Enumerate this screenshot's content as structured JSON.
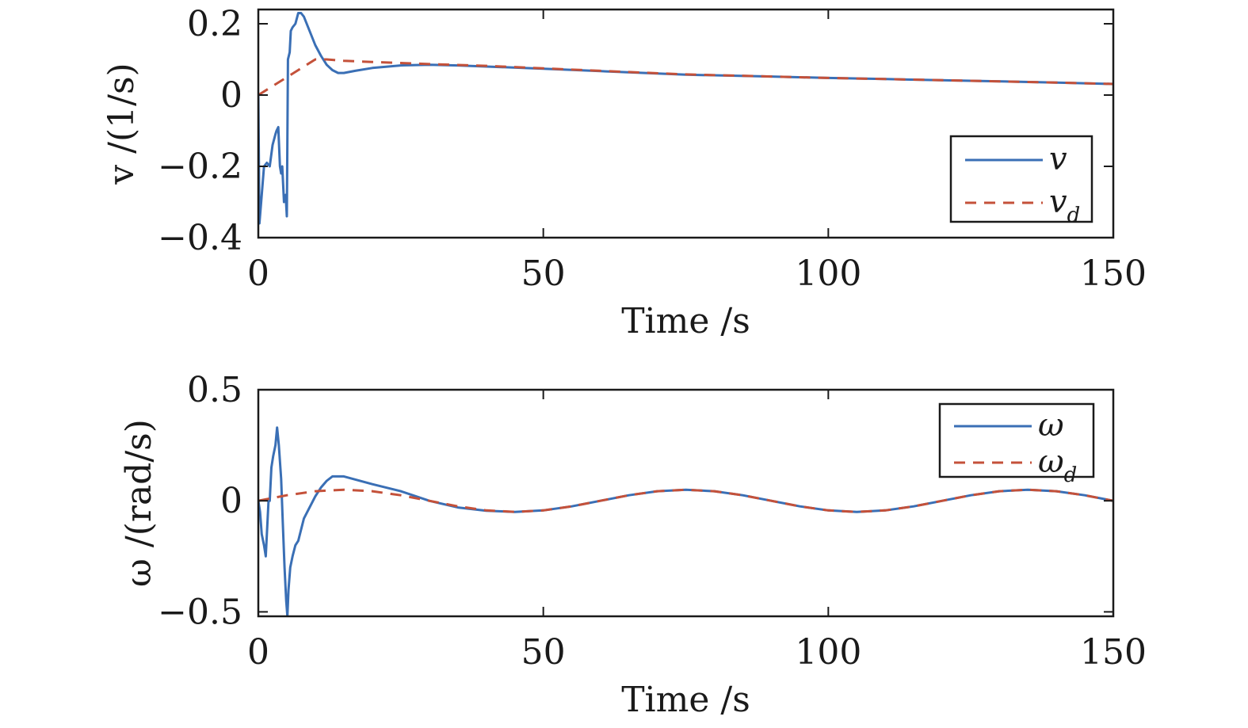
{
  "chart_data": [
    {
      "type": "line",
      "xlabel": "Time /s",
      "ylabel": "v /(1/s)",
      "xlim": [
        0,
        150
      ],
      "ylim": [
        -0.4,
        0.24
      ],
      "xticks": [
        "0",
        "50",
        "100",
        "150"
      ],
      "xtick_values": [
        0,
        50,
        100,
        150
      ],
      "yticks": [
        "−0.4",
        "−0.2",
        "0",
        "0.2"
      ],
      "ytick_values": [
        -0.4,
        -0.2,
        0,
        0.2
      ],
      "grid": false,
      "legend_position": "right",
      "series": [
        {
          "name": "v",
          "color": "#3a6fb5",
          "style": "solid",
          "x": [
            0,
            0.2,
            0.5,
            1.0,
            1.5,
            2.0,
            2.5,
            3.0,
            3.2,
            3.5,
            3.8,
            4.0,
            4.2,
            4.5,
            4.8,
            5.0,
            5.2,
            5.5,
            5.7,
            6.0,
            6.5,
            7.0,
            7.5,
            8.0,
            9.0,
            10.0,
            11.0,
            12.0,
            13.0,
            14.0,
            15.0,
            17.0,
            20.0,
            25.0,
            30.0,
            35.0,
            40.0,
            50.0,
            60.0,
            75.0,
            90.0,
            100.0,
            110.0,
            125.0,
            140.0,
            150.0
          ],
          "values": [
            0,
            -0.36,
            -0.3,
            -0.2,
            -0.19,
            -0.2,
            -0.14,
            -0.11,
            -0.1,
            -0.09,
            -0.2,
            -0.22,
            -0.2,
            -0.3,
            -0.28,
            -0.34,
            0.1,
            0.12,
            0.18,
            0.19,
            0.2,
            0.23,
            0.23,
            0.22,
            0.18,
            0.14,
            0.11,
            0.085,
            0.07,
            0.062,
            0.062,
            0.068,
            0.076,
            0.083,
            0.085,
            0.083,
            0.08,
            0.074,
            0.067,
            0.057,
            0.052,
            0.048,
            0.045,
            0.04,
            0.035,
            0.031
          ]
        },
        {
          "name": "v_d",
          "color": "#c4513a",
          "style": "dashed",
          "x": [
            0,
            2,
            4,
            6,
            8,
            10,
            12,
            15,
            20,
            30,
            40,
            50,
            60,
            75,
            90,
            100,
            110,
            125,
            140,
            150
          ],
          "values": [
            0,
            0.02,
            0.04,
            0.06,
            0.08,
            0.1,
            0.1,
            0.096,
            0.093,
            0.087,
            0.082,
            0.075,
            0.068,
            0.058,
            0.052,
            0.048,
            0.045,
            0.04,
            0.035,
            0.031
          ]
        }
      ]
    },
    {
      "type": "line",
      "xlabel": "Time /s",
      "ylabel": "ω /(rad/s)",
      "xlim": [
        0,
        150
      ],
      "ylim": [
        -0.52,
        0.5
      ],
      "xticks": [
        "0",
        "50",
        "100",
        "150"
      ],
      "xtick_values": [
        0,
        50,
        100,
        150
      ],
      "yticks": [
        "−0.5",
        "0",
        "0.5"
      ],
      "ytick_values": [
        -0.5,
        0,
        0.5
      ],
      "grid": false,
      "legend_position": "top-right",
      "series": [
        {
          "name": "ω",
          "color": "#3a6fb5",
          "style": "solid",
          "x": [
            0,
            0.3,
            0.6,
            1.0,
            1.3,
            1.6,
            1.8,
            2.0,
            2.3,
            2.6,
            3.0,
            3.3,
            3.6,
            4.0,
            4.3,
            4.6,
            4.9,
            5.1,
            5.3,
            5.6,
            6.0,
            6.5,
            7.0,
            8.0,
            9.0,
            10.0,
            11.0,
            12.0,
            13.0,
            14.0,
            15.0,
            20.0,
            25.0,
            30.0,
            35.0,
            40.0,
            45.0,
            50.0,
            55.0,
            60.0,
            65.0,
            70.0,
            75.0,
            80.0,
            85.0,
            90.0,
            95.0,
            100.0,
            105.0,
            110.0,
            115.0,
            120.0,
            125.0,
            130.0,
            135.0,
            140.0,
            145.0,
            150.0
          ],
          "values": [
            0,
            -0.05,
            -0.15,
            -0.2,
            -0.25,
            -0.1,
            0.0,
            0.0,
            0.15,
            0.2,
            0.25,
            0.33,
            0.25,
            0.1,
            -0.1,
            -0.3,
            -0.45,
            -0.52,
            -0.4,
            -0.3,
            -0.25,
            -0.2,
            -0.18,
            -0.08,
            -0.03,
            0.02,
            0.06,
            0.09,
            0.11,
            0.11,
            0.11,
            0.075,
            0.043,
            0.0,
            -0.03,
            -0.045,
            -0.05,
            -0.043,
            -0.025,
            0.0,
            0.025,
            0.043,
            0.05,
            0.043,
            0.025,
            0.0,
            -0.025,
            -0.043,
            -0.05,
            -0.043,
            -0.025,
            0.0,
            0.025,
            0.043,
            0.05,
            0.043,
            0.025,
            0.0
          ]
        },
        {
          "name": "ω_d",
          "color": "#c4513a",
          "style": "dashed",
          "x": [
            0,
            5,
            10,
            15,
            20,
            25,
            30,
            35,
            40,
            45,
            50,
            55,
            60,
            65,
            70,
            75,
            80,
            85,
            90,
            95,
            100,
            105,
            110,
            115,
            120,
            125,
            130,
            135,
            140,
            145,
            150
          ],
          "values": [
            0,
            0.025,
            0.043,
            0.05,
            0.043,
            0.025,
            0.0,
            -0.025,
            -0.043,
            -0.05,
            -0.043,
            -0.025,
            0.0,
            0.025,
            0.043,
            0.05,
            0.043,
            0.025,
            0.0,
            -0.025,
            -0.043,
            -0.05,
            -0.043,
            -0.025,
            0.0,
            0.025,
            0.043,
            0.05,
            0.043,
            0.025,
            0.0
          ]
        }
      ]
    }
  ],
  "legends": [
    {
      "items": [
        {
          "base": "v",
          "sub": ""
        },
        {
          "base": "v",
          "sub": "d"
        }
      ]
    },
    {
      "items": [
        {
          "base": "ω",
          "sub": ""
        },
        {
          "base": "ω",
          "sub": "d"
        }
      ]
    }
  ]
}
